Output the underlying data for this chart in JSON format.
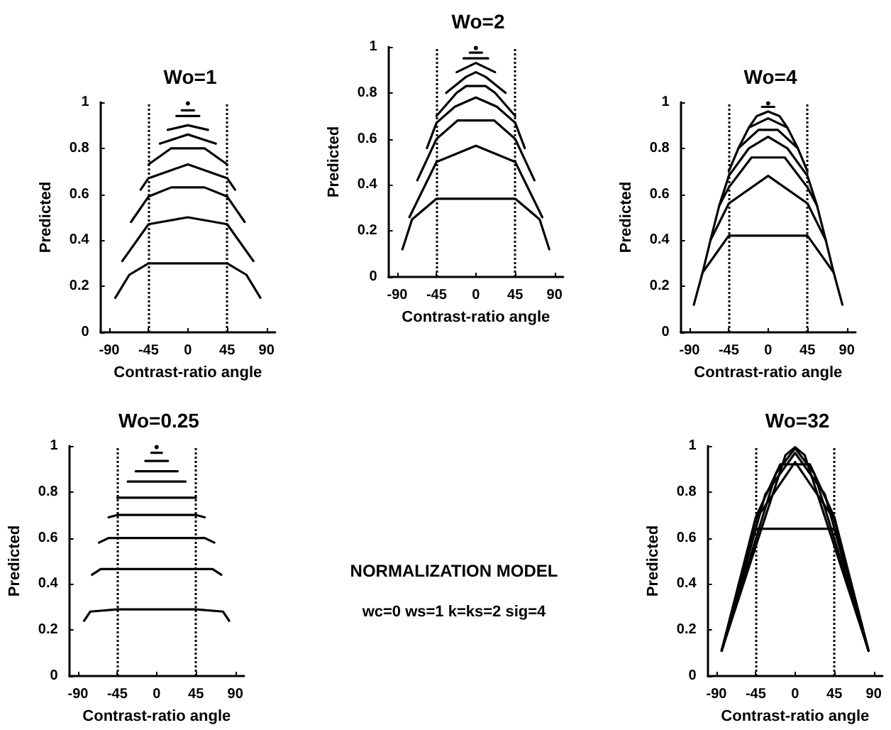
{
  "chart_data": [
    {
      "type": "line",
      "title": "Wo=1",
      "xlabel": "Contrast-ratio angle",
      "ylabel": "Predicted",
      "xlim": [
        -100,
        100
      ],
      "ylim": [
        0,
        1
      ],
      "xticks": [
        -90,
        -45,
        0,
        45,
        90
      ],
      "yticks": [
        0,
        0.2,
        0.4,
        0.6,
        0.8,
        1
      ],
      "marker": "none",
      "line_style": "solid",
      "ref_lines": [
        {
          "axis": "x",
          "value": -45,
          "line_style": "dotted"
        },
        {
          "axis": "x",
          "value": 45,
          "line_style": "dotted"
        }
      ],
      "series": [
        {
          "color": "#000000",
          "x": [
            -83,
            -67,
            -45,
            45,
            67,
            83
          ],
          "values": [
            0.15,
            0.25,
            0.3,
            0.3,
            0.25,
            0.15
          ]
        },
        {
          "color": "#000000",
          "x": [
            -75,
            -45,
            0,
            45,
            75
          ],
          "values": [
            0.31,
            0.47,
            0.5,
            0.47,
            0.31
          ]
        },
        {
          "color": "#000000",
          "x": [
            -65,
            -45,
            -19,
            19,
            45,
            65
          ],
          "values": [
            0.48,
            0.59,
            0.63,
            0.63,
            0.59,
            0.48
          ]
        },
        {
          "color": "#000000",
          "x": [
            -54,
            -45,
            0,
            45,
            54
          ],
          "values": [
            0.62,
            0.67,
            0.73,
            0.67,
            0.62
          ]
        },
        {
          "color": "#000000",
          "x": [
            -45,
            -19,
            19,
            45
          ],
          "values": [
            0.73,
            0.8,
            0.8,
            0.73
          ]
        },
        {
          "color": "#000000",
          "x": [
            -32,
            0,
            32
          ],
          "values": [
            0.82,
            0.86,
            0.82
          ]
        },
        {
          "color": "#000000",
          "x": [
            -23,
            0,
            23
          ],
          "values": [
            0.88,
            0.9,
            0.88
          ]
        },
        {
          "color": "#000000",
          "x": [
            -13,
            13
          ],
          "values": [
            0.94,
            0.94
          ]
        },
        {
          "color": "#000000",
          "x": [
            -7,
            7
          ],
          "values": [
            0.965,
            0.965
          ]
        },
        {
          "color": "#000000",
          "x": [
            0
          ],
          "values": [
            0.995
          ],
          "marker": "circle"
        }
      ]
    },
    {
      "type": "line",
      "title": "Wo=2",
      "xlabel": "Contrast-ratio angle",
      "ylabel": "Predicted",
      "xlim": [
        -100,
        100
      ],
      "ylim": [
        0,
        1
      ],
      "xticks": [
        -90,
        -45,
        0,
        45,
        90
      ],
      "yticks": [
        0,
        0.2,
        0.4,
        0.6,
        0.8,
        1
      ],
      "marker": "none",
      "line_style": "solid",
      "ref_lines": [
        {
          "axis": "x",
          "value": -45,
          "line_style": "dotted"
        },
        {
          "axis": "x",
          "value": 45,
          "line_style": "dotted"
        }
      ],
      "series": [
        {
          "color": "#000000",
          "x": [
            -84,
            -73,
            -45,
            45,
            73,
            84
          ],
          "values": [
            0.12,
            0.25,
            0.34,
            0.34,
            0.25,
            0.12
          ]
        },
        {
          "color": "#000000",
          "x": [
            -76,
            -45,
            0,
            45,
            76
          ],
          "values": [
            0.26,
            0.5,
            0.57,
            0.5,
            0.26
          ]
        },
        {
          "color": "#000000",
          "x": [
            -67,
            -45,
            -21,
            21,
            45,
            67
          ],
          "values": [
            0.42,
            0.6,
            0.68,
            0.68,
            0.6,
            0.42
          ]
        },
        {
          "color": "#000000",
          "x": [
            -56,
            -45,
            -24,
            0,
            24,
            45,
            56
          ],
          "values": [
            0.56,
            0.67,
            0.74,
            0.78,
            0.74,
            0.67,
            0.56
          ]
        },
        {
          "color": "#000000",
          "x": [
            -45,
            -22,
            -11,
            11,
            22,
            45
          ],
          "values": [
            0.7,
            0.8,
            0.83,
            0.83,
            0.8,
            0.7
          ]
        },
        {
          "color": "#000000",
          "x": [
            -34,
            -11,
            0,
            11,
            34
          ],
          "values": [
            0.8,
            0.87,
            0.89,
            0.87,
            0.8
          ]
        },
        {
          "color": "#000000",
          "x": [
            -22,
            0,
            22
          ],
          "values": [
            0.89,
            0.93,
            0.89
          ]
        },
        {
          "color": "#000000",
          "x": [
            -14,
            14
          ],
          "values": [
            0.95,
            0.95
          ]
        },
        {
          "color": "#000000",
          "x": [
            -7,
            7
          ],
          "values": [
            0.975,
            0.975
          ]
        },
        {
          "color": "#000000",
          "x": [
            0
          ],
          "values": [
            0.995
          ],
          "marker": "circle"
        }
      ]
    },
    {
      "type": "line",
      "title": "Wo=4",
      "xlabel": "Contrast-ratio angle",
      "ylabel": "Predicted",
      "xlim": [
        -100,
        100
      ],
      "ylim": [
        0,
        1
      ],
      "xticks": [
        -90,
        -45,
        0,
        45,
        90
      ],
      "yticks": [
        0,
        0.2,
        0.4,
        0.6,
        0.8,
        1
      ],
      "marker": "none",
      "line_style": "solid",
      "ref_lines": [
        {
          "axis": "x",
          "value": -45,
          "line_style": "dotted"
        },
        {
          "axis": "x",
          "value": 45,
          "line_style": "dotted"
        }
      ],
      "series": [
        {
          "color": "#000000",
          "x": [
            -85,
            -75,
            -45,
            45,
            75,
            85
          ],
          "values": [
            0.12,
            0.26,
            0.42,
            0.42,
            0.26,
            0.12
          ]
        },
        {
          "color": "#000000",
          "x": [
            -75,
            -66,
            -45,
            0,
            45,
            66,
            75
          ],
          "values": [
            0.26,
            0.4,
            0.56,
            0.68,
            0.56,
            0.4,
            0.26
          ]
        },
        {
          "color": "#000000",
          "x": [
            -66,
            -56,
            -45,
            -19,
            19,
            45,
            56,
            66
          ],
          "values": [
            0.4,
            0.55,
            0.63,
            0.76,
            0.76,
            0.63,
            0.55,
            0.4
          ]
        },
        {
          "color": "#000000",
          "x": [
            -56,
            -45,
            -22,
            0,
            22,
            45,
            56
          ],
          "values": [
            0.55,
            0.68,
            0.8,
            0.85,
            0.8,
            0.68,
            0.55
          ]
        },
        {
          "color": "#000000",
          "x": [
            -45,
            -34,
            -11,
            11,
            34,
            45
          ],
          "values": [
            0.7,
            0.8,
            0.88,
            0.88,
            0.8,
            0.7
          ]
        },
        {
          "color": "#000000",
          "x": [
            -34,
            -22,
            0,
            22,
            34
          ],
          "values": [
            0.8,
            0.89,
            0.93,
            0.89,
            0.8
          ]
        },
        {
          "color": "#000000",
          "x": [
            -22,
            -13,
            0,
            13,
            22
          ],
          "values": [
            0.89,
            0.94,
            0.96,
            0.94,
            0.89
          ]
        },
        {
          "color": "#000000",
          "x": [
            -7,
            7
          ],
          "values": [
            0.98,
            0.98
          ]
        },
        {
          "color": "#000000",
          "x": [
            0
          ],
          "values": [
            0.995
          ],
          "marker": "circle"
        }
      ]
    },
    {
      "type": "line",
      "title": "Wo=0.25",
      "xlabel": "Contrast-ratio angle",
      "ylabel": "Predicted",
      "xlim": [
        -100,
        100
      ],
      "ylim": [
        0,
        1
      ],
      "xticks": [
        -90,
        -45,
        0,
        45,
        90
      ],
      "yticks": [
        0,
        0.2,
        0.4,
        0.6,
        0.8,
        1
      ],
      "marker": "none",
      "line_style": "solid",
      "ref_lines": [
        {
          "axis": "x",
          "value": -45,
          "line_style": "dotted"
        },
        {
          "axis": "x",
          "value": 45,
          "line_style": "dotted"
        }
      ],
      "series": [
        {
          "color": "#000000",
          "x": [
            -83,
            -76,
            -45,
            45,
            76,
            83
          ],
          "values": [
            0.24,
            0.28,
            0.29,
            0.29,
            0.28,
            0.24
          ]
        },
        {
          "color": "#000000",
          "x": [
            -74,
            -64,
            64,
            74
          ],
          "values": [
            0.44,
            0.465,
            0.465,
            0.44
          ]
        },
        {
          "color": "#000000",
          "x": [
            -66,
            -55,
            55,
            66
          ],
          "values": [
            0.58,
            0.6,
            0.6,
            0.58
          ]
        },
        {
          "color": "#000000",
          "x": [
            -55,
            -45,
            45,
            55
          ],
          "values": [
            0.69,
            0.7,
            0.7,
            0.69
          ]
        },
        {
          "color": "#000000",
          "x": [
            -45,
            45
          ],
          "values": [
            0.775,
            0.775
          ]
        },
        {
          "color": "#000000",
          "x": [
            -33,
            33
          ],
          "values": [
            0.845,
            0.845
          ]
        },
        {
          "color": "#000000",
          "x": [
            -24,
            24
          ],
          "values": [
            0.89,
            0.89
          ]
        },
        {
          "color": "#000000",
          "x": [
            -13,
            13
          ],
          "values": [
            0.935,
            0.935
          ]
        },
        {
          "color": "#000000",
          "x": [
            -6,
            6
          ],
          "values": [
            0.97,
            0.97
          ]
        },
        {
          "color": "#000000",
          "x": [
            0
          ],
          "values": [
            0.995
          ],
          "marker": "circle"
        }
      ]
    },
    {
      "type": "line",
      "title": "Wo=32",
      "xlabel": "Contrast-ratio angle",
      "ylabel": "Predicted",
      "xlim": [
        -100,
        100
      ],
      "ylim": [
        0,
        1
      ],
      "xticks": [
        -90,
        -45,
        0,
        45,
        90
      ],
      "yticks": [
        0,
        0.2,
        0.4,
        0.6,
        0.8,
        1
      ],
      "marker": "none",
      "line_style": "solid",
      "ref_lines": [
        {
          "axis": "x",
          "value": -45,
          "line_style": "dotted"
        },
        {
          "axis": "x",
          "value": 45,
          "line_style": "dotted"
        }
      ],
      "series": [
        {
          "color": "#000000",
          "x": [
            -84,
            -45,
            45,
            84
          ],
          "values": [
            0.11,
            0.64,
            0.64,
            0.11
          ]
        },
        {
          "color": "#000000",
          "x": [
            -84,
            -45,
            0,
            45,
            84
          ],
          "values": [
            0.11,
            0.68,
            0.93,
            0.68,
            0.11
          ]
        },
        {
          "color": "#000000",
          "x": [
            -84,
            -45,
            -17,
            17,
            45,
            84
          ],
          "values": [
            0.11,
            0.69,
            0.92,
            0.92,
            0.69,
            0.11
          ]
        },
        {
          "color": "#000000",
          "x": [
            -84,
            -34,
            0,
            34,
            84
          ],
          "values": [
            0.11,
            0.79,
            0.97,
            0.79,
            0.11
          ]
        },
        {
          "color": "#000000",
          "x": [
            -84,
            -22,
            0,
            22,
            84
          ],
          "values": [
            0.11,
            0.88,
            0.99,
            0.88,
            0.11
          ]
        },
        {
          "color": "#000000",
          "x": [
            -84,
            -11,
            0,
            11,
            84
          ],
          "values": [
            0.11,
            0.96,
            0.995,
            0.96,
            0.11
          ]
        }
      ]
    },
    {
      "type": "other",
      "annotations": [
        "NORMALIZATION MODEL",
        "wc=0 ws=1 k=ks=2 sig=4"
      ]
    }
  ]
}
